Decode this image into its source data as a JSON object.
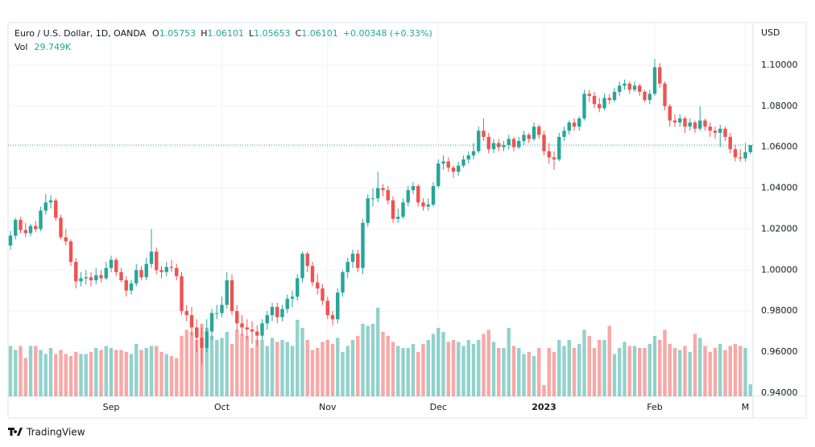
{
  "chart_data": {
    "type": "candlestick",
    "header": {
      "symbol": "Euro / U.S. Dollar, 1D, OANDA",
      "ohlc": [
        {
          "label": "O",
          "value": "1.05753"
        },
        {
          "label": "H",
          "value": "1.06101"
        },
        {
          "label": "L",
          "value": "1.05653"
        },
        {
          "label": "C",
          "value": "1.06101"
        }
      ],
      "change": "+0.00348 (+0.33%)",
      "volume_name": "Vol",
      "volume_label": "29.749K"
    },
    "currency": "USD",
    "brand": "TradingView",
    "up_color": "#26a69a",
    "down_color": "#ef5350",
    "ylim": [
      0.9384,
      1.1208
    ],
    "yticks": [
      {
        "value": 0.94,
        "label": "0.94000"
      },
      {
        "value": 0.96,
        "label": "0.96000"
      },
      {
        "value": 0.98,
        "label": "0.98000"
      },
      {
        "value": 1.0,
        "label": "1.00000"
      },
      {
        "value": 1.02,
        "label": "1.02000"
      },
      {
        "value": 1.04,
        "label": "1.04000"
      },
      {
        "value": 1.06,
        "label": "1.06000"
      },
      {
        "value": 1.08,
        "label": "1.08000"
      },
      {
        "value": 1.1,
        "label": "1.10000"
      }
    ],
    "xticks": [
      {
        "value": 20,
        "label": "Sep"
      },
      {
        "value": 42,
        "label": "Oct"
      },
      {
        "value": 63,
        "label": "Nov"
      },
      {
        "value": 85,
        "label": "Dec"
      },
      {
        "value": 106,
        "label": "2023"
      },
      {
        "value": 128,
        "label": "Feb"
      },
      {
        "value": 146,
        "label": "M"
      }
    ],
    "vlim": [
      0,
      400
    ],
    "grid": true,
    "candles": [
      [
        1.012,
        1.019,
        1.01,
        1.0168
      ],
      [
        1.0168,
        1.0255,
        1.015,
        1.0245
      ],
      [
        1.0245,
        1.026,
        1.018,
        1.0195
      ],
      [
        1.0195,
        1.023,
        1.016,
        1.018
      ],
      [
        1.018,
        1.0225,
        1.0165,
        1.0215
      ],
      [
        1.0215,
        1.024,
        1.0185,
        1.02
      ],
      [
        1.02,
        1.031,
        1.019,
        1.029
      ],
      [
        1.029,
        1.037,
        1.027,
        1.033
      ],
      [
        1.033,
        1.0365,
        1.03,
        1.034
      ],
      [
        1.034,
        1.035,
        1.024,
        1.0255
      ],
      [
        1.0255,
        1.027,
        1.015,
        1.016
      ],
      [
        1.016,
        1.02,
        1.012,
        1.014
      ],
      [
        1.014,
        1.015,
        1.002,
        1.004
      ],
      [
        1.004,
        1.006,
        0.991,
        0.9945
      ],
      [
        0.9945,
        0.999,
        0.992,
        0.996
      ],
      [
        0.996,
        1.0,
        0.993,
        0.9965
      ],
      [
        0.9965,
        0.999,
        0.992,
        0.995
      ],
      [
        0.995,
        1.001,
        0.993,
        0.9975
      ],
      [
        0.9975,
        1.0,
        0.994,
        0.996
      ],
      [
        0.996,
        1.004,
        0.995,
        1.001
      ],
      [
        1.001,
        1.007,
        0.999,
        1.005
      ],
      [
        1.005,
        1.006,
        0.997,
        0.999
      ],
      [
        0.999,
        1.001,
        0.994,
        0.995
      ],
      [
        0.995,
        0.997,
        0.987,
        0.99
      ],
      [
        0.99,
        0.995,
        0.988,
        0.9935
      ],
      [
        0.9935,
        1.003,
        0.992,
        1.0
      ],
      [
        1.0,
        1.002,
        0.995,
        0.9965
      ],
      [
        0.9965,
        1.006,
        0.995,
        1.003
      ],
      [
        1.003,
        1.02,
        1.001,
        1.009
      ],
      [
        1.009,
        1.011,
        0.998,
        1.0
      ],
      [
        1.0,
        1.002,
        0.996,
        0.999
      ],
      [
        0.999,
        1.004,
        0.997,
        1.0015
      ],
      [
        1.0015,
        1.005,
        0.999,
        1.001
      ],
      [
        1.001,
        1.003,
        0.995,
        0.997
      ],
      [
        0.997,
        0.999,
        0.978,
        0.98
      ],
      [
        0.98,
        0.983,
        0.975,
        0.978
      ],
      [
        0.978,
        0.982,
        0.968,
        0.972
      ],
      [
        0.972,
        0.976,
        0.96,
        0.967
      ],
      [
        0.967,
        0.972,
        0.954,
        0.962
      ],
      [
        0.962,
        0.976,
        0.96,
        0.97
      ],
      [
        0.97,
        0.981,
        0.966,
        0.979
      ],
      [
        0.979,
        0.983,
        0.976,
        0.979
      ],
      [
        0.979,
        0.987,
        0.977,
        0.983
      ],
      [
        0.983,
        0.999,
        0.981,
        0.995
      ],
      [
        0.995,
        0.998,
        0.978,
        0.98
      ],
      [
        0.98,
        0.983,
        0.97,
        0.974
      ],
      [
        0.974,
        0.978,
        0.968,
        0.972
      ],
      [
        0.972,
        0.976,
        0.966,
        0.971
      ],
      [
        0.971,
        0.975,
        0.964,
        0.97
      ],
      [
        0.97,
        0.973,
        0.963,
        0.968
      ],
      [
        0.968,
        0.976,
        0.966,
        0.974
      ],
      [
        0.974,
        0.98,
        0.971,
        0.978
      ],
      [
        0.978,
        0.984,
        0.975,
        0.982
      ],
      [
        0.982,
        0.984,
        0.974,
        0.977
      ],
      [
        0.977,
        0.983,
        0.975,
        0.981
      ],
      [
        0.981,
        0.988,
        0.979,
        0.986
      ],
      [
        0.986,
        0.99,
        0.982,
        0.987
      ],
      [
        0.987,
        0.998,
        0.985,
        0.996
      ],
      [
        0.996,
        1.009,
        0.994,
        1.008
      ],
      [
        1.008,
        1.009,
        0.999,
        1.002
      ],
      [
        1.002,
        1.004,
        0.992,
        0.994
      ],
      [
        0.994,
        0.998,
        0.988,
        0.991
      ],
      [
        0.991,
        0.993,
        0.983,
        0.985
      ],
      [
        0.985,
        0.987,
        0.976,
        0.978
      ],
      [
        0.978,
        0.98,
        0.973,
        0.976
      ],
      [
        0.976,
        0.991,
        0.974,
        0.989
      ],
      [
        0.989,
        1.0,
        0.987,
        0.999
      ],
      [
        0.999,
        1.006,
        0.996,
        1.004
      ],
      [
        1.004,
        1.01,
        1.001,
        1.008
      ],
      [
        1.008,
        1.01,
        0.999,
        1.001
      ],
      [
        1.001,
        1.025,
        0.998,
        1.023
      ],
      [
        1.023,
        1.037,
        1.021,
        1.035
      ],
      [
        1.035,
        1.04,
        1.031,
        1.035
      ],
      [
        1.035,
        1.048,
        1.033,
        1.04
      ],
      [
        1.04,
        1.042,
        1.036,
        1.039
      ],
      [
        1.039,
        1.041,
        1.032,
        1.034
      ],
      [
        1.034,
        1.036,
        1.023,
        1.025
      ],
      [
        1.025,
        1.03,
        1.023,
        1.026
      ],
      [
        1.026,
        1.035,
        1.025,
        1.033
      ],
      [
        1.033,
        1.041,
        1.031,
        1.039
      ],
      [
        1.039,
        1.043,
        1.037,
        1.041
      ],
      [
        1.041,
        1.042,
        1.031,
        1.033
      ],
      [
        1.033,
        1.035,
        1.029,
        1.031
      ],
      [
        1.031,
        1.035,
        1.029,
        1.032
      ],
      [
        1.032,
        1.043,
        1.031,
        1.041
      ],
      [
        1.041,
        1.054,
        1.04,
        1.052
      ],
      [
        1.052,
        1.056,
        1.049,
        1.053
      ],
      [
        1.053,
        1.055,
        1.048,
        1.05
      ],
      [
        1.05,
        1.051,
        1.045,
        1.048
      ],
      [
        1.048,
        1.053,
        1.046,
        1.051
      ],
      [
        1.051,
        1.056,
        1.05,
        1.054
      ],
      [
        1.054,
        1.058,
        1.052,
        1.056
      ],
      [
        1.056,
        1.062,
        1.054,
        1.058
      ],
      [
        1.058,
        1.07,
        1.057,
        1.068
      ],
      [
        1.068,
        1.074,
        1.063,
        1.065
      ],
      [
        1.065,
        1.067,
        1.057,
        1.059
      ],
      [
        1.059,
        1.064,
        1.057,
        1.062
      ],
      [
        1.062,
        1.064,
        1.058,
        1.06
      ],
      [
        1.06,
        1.063,
        1.058,
        1.061
      ],
      [
        1.061,
        1.066,
        1.059,
        1.064
      ],
      [
        1.064,
        1.065,
        1.058,
        1.06
      ],
      [
        1.06,
        1.065,
        1.059,
        1.063
      ],
      [
        1.063,
        1.068,
        1.061,
        1.066
      ],
      [
        1.066,
        1.067,
        1.062,
        1.064
      ],
      [
        1.064,
        1.072,
        1.063,
        1.07
      ],
      [
        1.07,
        1.071,
        1.064,
        1.066
      ],
      [
        1.066,
        1.068,
        1.056,
        1.058
      ],
      [
        1.058,
        1.062,
        1.052,
        1.055
      ],
      [
        1.055,
        1.058,
        1.049,
        1.054
      ],
      [
        1.054,
        1.067,
        1.053,
        1.065
      ],
      [
        1.065,
        1.07,
        1.063,
        1.068
      ],
      [
        1.068,
        1.073,
        1.066,
        1.072
      ],
      [
        1.072,
        1.074,
        1.068,
        1.07
      ],
      [
        1.07,
        1.075,
        1.068,
        1.074
      ],
      [
        1.074,
        1.088,
        1.073,
        1.086
      ],
      [
        1.086,
        1.088,
        1.082,
        1.085
      ],
      [
        1.085,
        1.087,
        1.079,
        1.081
      ],
      [
        1.081,
        1.084,
        1.077,
        1.079
      ],
      [
        1.079,
        1.086,
        1.078,
        1.084
      ],
      [
        1.084,
        1.086,
        1.081,
        1.083
      ],
      [
        1.083,
        1.089,
        1.082,
        1.087
      ],
      [
        1.087,
        1.092,
        1.085,
        1.09
      ],
      [
        1.09,
        1.093,
        1.088,
        1.091
      ],
      [
        1.091,
        1.092,
        1.086,
        1.088
      ],
      [
        1.088,
        1.092,
        1.087,
        1.09
      ],
      [
        1.09,
        1.091,
        1.085,
        1.087
      ],
      [
        1.087,
        1.088,
        1.082,
        1.083
      ],
      [
        1.083,
        1.088,
        1.081,
        1.086
      ],
      [
        1.086,
        1.103,
        1.085,
        1.099
      ],
      [
        1.099,
        1.101,
        1.089,
        1.091
      ],
      [
        1.091,
        1.092,
        1.078,
        1.08
      ],
      [
        1.08,
        1.081,
        1.07,
        1.073
      ],
      [
        1.073,
        1.076,
        1.07,
        1.072
      ],
      [
        1.072,
        1.076,
        1.07,
        1.074
      ],
      [
        1.074,
        1.075,
        1.067,
        1.07
      ],
      [
        1.07,
        1.074,
        1.068,
        1.072
      ],
      [
        1.072,
        1.073,
        1.067,
        1.069
      ],
      [
        1.069,
        1.08,
        1.068,
        1.073
      ],
      [
        1.073,
        1.074,
        1.068,
        1.07
      ],
      [
        1.07,
        1.072,
        1.065,
        1.068
      ],
      [
        1.068,
        1.07,
        1.064,
        1.067
      ],
      [
        1.067,
        1.071,
        1.06,
        1.069
      ],
      [
        1.069,
        1.07,
        1.063,
        1.065
      ],
      [
        1.065,
        1.067,
        1.057,
        1.059
      ],
      [
        1.059,
        1.061,
        1.053,
        1.055
      ],
      [
        1.055,
        1.059,
        1.053,
        1.0545
      ],
      [
        1.0545,
        1.062,
        1.053,
        1.0575
      ],
      [
        1.05753,
        1.06101,
        1.05653,
        1.06101
      ]
    ],
    "volume": [
      125,
      115,
      125,
      95,
      125,
      125,
      115,
      105,
      120,
      105,
      115,
      105,
      100,
      110,
      105,
      105,
      110,
      120,
      115,
      125,
      120,
      115,
      115,
      110,
      105,
      130,
      115,
      120,
      125,
      125,
      110,
      105,
      100,
      95,
      150,
      165,
      160,
      140,
      180,
      170,
      150,
      140,
      145,
      160,
      130,
      165,
      155,
      150,
      120,
      140,
      140,
      125,
      145,
      135,
      140,
      135,
      125,
      190,
      170,
      140,
      115,
      120,
      135,
      140,
      130,
      145,
      110,
      125,
      140,
      150,
      180,
      175,
      180,
      220,
      160,
      150,
      135,
      125,
      120,
      120,
      130,
      110,
      130,
      140,
      155,
      170,
      160,
      135,
      140,
      135,
      125,
      140,
      130,
      140,
      155,
      165,
      135,
      120,
      120,
      170,
      125,
      120,
      105,
      110,
      100,
      120,
      28,
      120,
      110,
      140,
      125,
      140,
      120,
      130,
      165,
      150,
      120,
      140,
      140,
      175,
      105,
      120,
      135,
      125,
      125,
      120,
      120,
      130,
      150,
      140,
      165,
      130,
      120,
      115,
      125,
      110,
      155,
      145,
      125,
      110,
      120,
      130,
      115,
      125,
      130,
      125,
      120,
      29.749
    ]
  }
}
